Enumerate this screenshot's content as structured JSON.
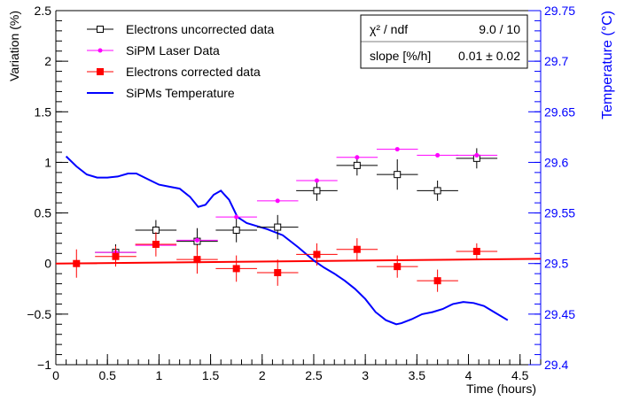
{
  "chart_data": {
    "type": "scatter",
    "xlabel": "Time (hours)",
    "ylabel": "Variation (%)",
    "y2label": "Temperature (°C)",
    "xlim": [
      0,
      4.7
    ],
    "ylim": [
      -1,
      2.5
    ],
    "y2lim": [
      29.4,
      29.75
    ],
    "x_ticks": [
      0,
      0.5,
      1,
      1.5,
      2,
      2.5,
      3,
      3.5,
      4,
      4.5
    ],
    "x_tick_labels": [
      "0",
      "0.5",
      "1",
      "1.5",
      "2",
      "2.5",
      "3",
      "3.5",
      "4",
      "4.5"
    ],
    "y_ticks": [
      -1,
      -0.5,
      0,
      0.5,
      1,
      1.5,
      2,
      2.5
    ],
    "y_tick_labels": [
      "−1",
      "−0.5",
      "0",
      "0.5",
      "1",
      "1.5",
      "2",
      "2.5"
    ],
    "y2_ticks": [
      29.4,
      29.45,
      29.5,
      29.55,
      29.6,
      29.65,
      29.7,
      29.75
    ],
    "y2_tick_labels": [
      "29.4",
      "29.45",
      "29.5",
      "29.55",
      "29.6",
      "29.65",
      "29.7",
      "29.75"
    ],
    "legend": {
      "placement": "top-left",
      "entries": [
        "Electrons uncorrected data",
        "SiPM Laser Data",
        "Electrons corrected data",
        "SiPMs Temperature"
      ]
    },
    "stats_box": {
      "placement": "top-right",
      "chi2_label": "χ² / ndf",
      "chi2_value": "9.0 / 10",
      "slope_label": "slope [%/h]",
      "slope_value": "0.01 ± 0.02"
    },
    "series": [
      {
        "name": "Electrons uncorrected data",
        "color": "#000000",
        "marker": "open-square",
        "axis": "left",
        "points": [
          {
            "x": 0.58,
            "y": 0.11,
            "xerr": 0.2,
            "yerr": 0.08
          },
          {
            "x": 0.97,
            "y": 0.33,
            "xerr": 0.2,
            "yerr": 0.1
          },
          {
            "x": 1.37,
            "y": 0.22,
            "xerr": 0.2,
            "yerr": 0.13
          },
          {
            "x": 1.75,
            "y": 0.33,
            "xerr": 0.2,
            "yerr": 0.12
          },
          {
            "x": 2.15,
            "y": 0.36,
            "xerr": 0.2,
            "yerr": 0.12
          },
          {
            "x": 2.53,
            "y": 0.72,
            "xerr": 0.2,
            "yerr": 0.1
          },
          {
            "x": 2.92,
            "y": 0.97,
            "xerr": 0.2,
            "yerr": 0.1
          },
          {
            "x": 3.31,
            "y": 0.88,
            "xerr": 0.2,
            "yerr": 0.15
          },
          {
            "x": 3.7,
            "y": 0.72,
            "xerr": 0.2,
            "yerr": 0.1
          },
          {
            "x": 4.08,
            "y": 1.04,
            "xerr": 0.2,
            "yerr": 0.1
          }
        ]
      },
      {
        "name": "SiPM Laser Data",
        "color": "#ff00ff",
        "marker": "dot",
        "axis": "left",
        "points": [
          {
            "x": 0.58,
            "y": 0.11,
            "xerr": 0.2,
            "yerr": 0.0
          },
          {
            "x": 0.97,
            "y": 0.18,
            "xerr": 0.2,
            "yerr": 0.0
          },
          {
            "x": 1.37,
            "y": 0.23,
            "xerr": 0.2,
            "yerr": 0.0
          },
          {
            "x": 1.75,
            "y": 0.46,
            "xerr": 0.2,
            "yerr": 0.0
          },
          {
            "x": 2.15,
            "y": 0.62,
            "xerr": 0.2,
            "yerr": 0.0
          },
          {
            "x": 2.53,
            "y": 0.82,
            "xerr": 0.2,
            "yerr": 0.0
          },
          {
            "x": 2.92,
            "y": 1.05,
            "xerr": 0.2,
            "yerr": 0.0
          },
          {
            "x": 3.31,
            "y": 1.13,
            "xerr": 0.2,
            "yerr": 0.0
          },
          {
            "x": 3.7,
            "y": 1.07,
            "xerr": 0.2,
            "yerr": 0.0
          },
          {
            "x": 4.08,
            "y": 1.07,
            "xerr": 0.2,
            "yerr": 0.0
          }
        ]
      },
      {
        "name": "Electrons corrected data",
        "color": "#ff0000",
        "marker": "filled-square",
        "axis": "left",
        "points": [
          {
            "x": 0.2,
            "y": 0.0,
            "xerr": 0.2,
            "yerr": 0.14
          },
          {
            "x": 0.58,
            "y": 0.07,
            "xerr": 0.2,
            "yerr": 0.1
          },
          {
            "x": 0.97,
            "y": 0.19,
            "xerr": 0.2,
            "yerr": 0.12
          },
          {
            "x": 1.37,
            "y": 0.04,
            "xerr": 0.2,
            "yerr": 0.14
          },
          {
            "x": 1.75,
            "y": -0.05,
            "xerr": 0.2,
            "yerr": 0.13
          },
          {
            "x": 2.15,
            "y": -0.09,
            "xerr": 0.2,
            "yerr": 0.13
          },
          {
            "x": 2.53,
            "y": 0.09,
            "xerr": 0.2,
            "yerr": 0.11
          },
          {
            "x": 2.92,
            "y": 0.14,
            "xerr": 0.2,
            "yerr": 0.11
          },
          {
            "x": 3.31,
            "y": -0.03,
            "xerr": 0.2,
            "yerr": 0.11
          },
          {
            "x": 3.7,
            "y": -0.17,
            "xerr": 0.2,
            "yerr": 0.11
          },
          {
            "x": 4.08,
            "y": 0.12,
            "xerr": 0.2,
            "yerr": 0.08
          }
        ]
      },
      {
        "name": "SiPMs Temperature",
        "color": "#0000ff",
        "marker": "line",
        "axis": "right",
        "points": [
          {
            "x": 0.1,
            "y": 29.606
          },
          {
            "x": 0.2,
            "y": 29.596
          },
          {
            "x": 0.3,
            "y": 29.588
          },
          {
            "x": 0.4,
            "y": 29.585
          },
          {
            "x": 0.5,
            "y": 29.585
          },
          {
            "x": 0.6,
            "y": 29.586
          },
          {
            "x": 0.7,
            "y": 29.589
          },
          {
            "x": 0.78,
            "y": 29.589
          },
          {
            "x": 0.9,
            "y": 29.583
          },
          {
            "x": 1.0,
            "y": 29.578
          },
          {
            "x": 1.1,
            "y": 29.576
          },
          {
            "x": 1.2,
            "y": 29.574
          },
          {
            "x": 1.3,
            "y": 29.566
          },
          {
            "x": 1.38,
            "y": 29.556
          },
          {
            "x": 1.45,
            "y": 29.558
          },
          {
            "x": 1.53,
            "y": 29.568
          },
          {
            "x": 1.6,
            "y": 29.572
          },
          {
            "x": 1.68,
            "y": 29.563
          },
          {
            "x": 1.76,
            "y": 29.546
          },
          {
            "x": 1.85,
            "y": 29.54
          },
          {
            "x": 1.95,
            "y": 29.537
          },
          {
            "x": 2.05,
            "y": 29.534
          },
          {
            "x": 2.2,
            "y": 29.528
          },
          {
            "x": 2.35,
            "y": 29.516
          },
          {
            "x": 2.5,
            "y": 29.503
          },
          {
            "x": 2.6,
            "y": 29.496
          },
          {
            "x": 2.7,
            "y": 29.49
          },
          {
            "x": 2.8,
            "y": 29.483
          },
          {
            "x": 2.9,
            "y": 29.475
          },
          {
            "x": 3.0,
            "y": 29.465
          },
          {
            "x": 3.1,
            "y": 29.452
          },
          {
            "x": 3.2,
            "y": 29.444
          },
          {
            "x": 3.3,
            "y": 29.44
          },
          {
            "x": 3.35,
            "y": 29.441
          },
          {
            "x": 3.45,
            "y": 29.445
          },
          {
            "x": 3.55,
            "y": 29.45
          },
          {
            "x": 3.65,
            "y": 29.452
          },
          {
            "x": 3.75,
            "y": 29.455
          },
          {
            "x": 3.85,
            "y": 29.46
          },
          {
            "x": 3.95,
            "y": 29.462
          },
          {
            "x": 4.05,
            "y": 29.461
          },
          {
            "x": 4.15,
            "y": 29.458
          },
          {
            "x": 4.25,
            "y": 29.452
          },
          {
            "x": 4.38,
            "y": 29.444
          }
        ]
      },
      {
        "name": "",
        "color": "#ff0000",
        "marker": "fit-line",
        "axis": "left",
        "points": [
          {
            "x": 0.0,
            "y": 0.0
          },
          {
            "x": 4.7,
            "y": 0.047
          }
        ]
      }
    ]
  }
}
